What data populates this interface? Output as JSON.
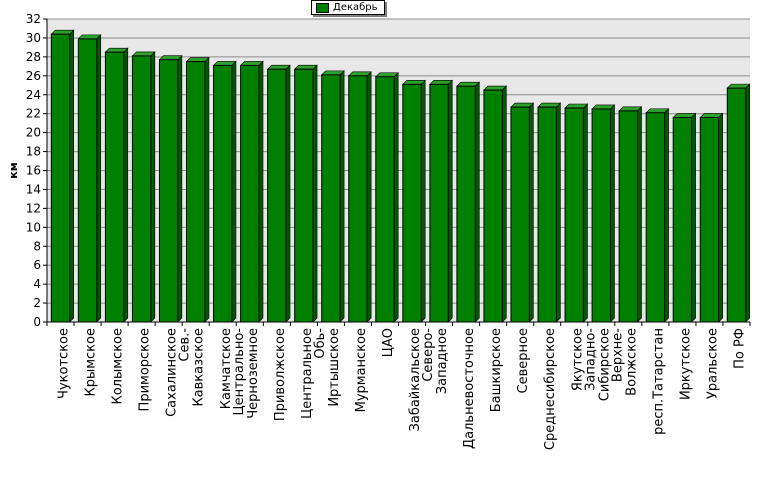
{
  "chart_data": {
    "type": "bar",
    "ylabel": "км",
    "ylim": [
      0,
      32
    ],
    "yticks": [
      0,
      2,
      4,
      6,
      8,
      10,
      12,
      14,
      16,
      18,
      20,
      22,
      24,
      26,
      28,
      30,
      32
    ],
    "grid": true,
    "legend_position": "top-center",
    "categories": [
      [
        "Чукотское"
      ],
      [
        "Крымское"
      ],
      [
        "Колымское"
      ],
      [
        "Приморское"
      ],
      [
        "Сахалинское"
      ],
      [
        "Сев.-",
        "Кавказское"
      ],
      [
        "Камчатское"
      ],
      [
        "Центрально-",
        "Черноземное"
      ],
      [
        "Приволжское"
      ],
      [
        "Центральное"
      ],
      [
        "Обь-",
        "Иртышское"
      ],
      [
        "Мурманское"
      ],
      [
        "ЦАО"
      ],
      [
        "Забайкальское"
      ],
      [
        "Северо-",
        "Западное"
      ],
      [
        "Дальневосточное"
      ],
      [
        "Башкирское"
      ],
      [
        "Северное"
      ],
      [
        "Среднесибирское"
      ],
      [
        "Якутское"
      ],
      [
        "Западно-",
        "Сибирское"
      ],
      [
        "Верхне-",
        "Волжское"
      ],
      [
        "респ.Татарстан"
      ],
      [
        "Иркутское"
      ],
      [
        "Уральское"
      ],
      [
        "По РФ"
      ]
    ],
    "series": [
      {
        "name": "Декабрь",
        "color": "#008000",
        "values": [
          30.4,
          29.9,
          28.5,
          28.1,
          27.7,
          27.5,
          27.1,
          27.1,
          26.7,
          26.7,
          26.1,
          26.0,
          25.9,
          25.1,
          25.1,
          24.9,
          24.5,
          22.7,
          22.7,
          22.6,
          22.5,
          22.3,
          22.1,
          21.6,
          21.6,
          24.7
        ]
      }
    ]
  }
}
